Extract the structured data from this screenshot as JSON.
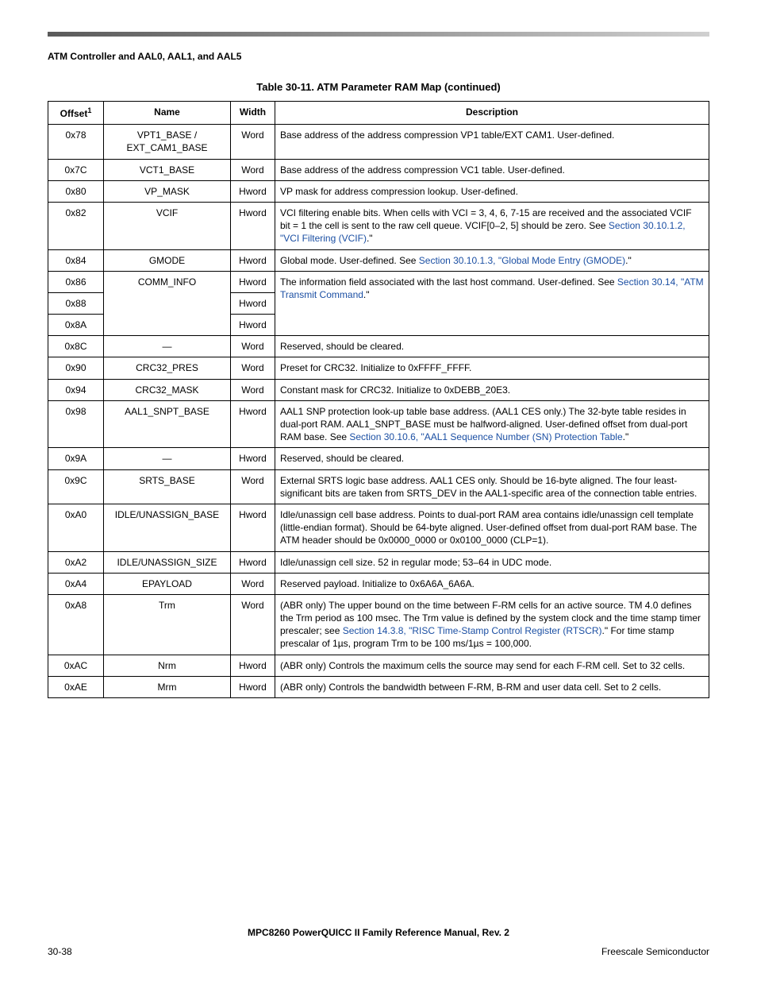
{
  "header": {
    "section": "ATM Controller and AAL0, AAL1, and AAL5"
  },
  "table": {
    "title": "Table 30-11. ATM Parameter RAM Map (continued)",
    "columns": {
      "offset": "Offset",
      "offset_sup": "1",
      "name": "Name",
      "width": "Width",
      "description": "Description"
    },
    "rows": {
      "r0": {
        "offset": "0x78",
        "name": "VPT1_BASE / EXT_CAM1_BASE",
        "width": "Word",
        "desc": "Base address of the address compression VP1 table/EXT CAM1. User-defined."
      },
      "r1": {
        "offset": "0x7C",
        "name": "VCT1_BASE",
        "width": "Word",
        "desc": "Base address of the address compression VC1 table. User-defined."
      },
      "r2": {
        "offset": "0x80",
        "name": "VP_MASK",
        "width": "Hword",
        "desc": "VP mask for address compression lookup. User-defined."
      },
      "r3": {
        "offset": "0x82",
        "name": "VCIF",
        "width": "Hword",
        "desc_a": "VCI filtering enable bits. When cells with VCI = 3, 4, 6, 7-15 are received and the associated VCIF bit = 1 the cell is sent to the raw cell queue. VCIF[0–2, 5] should be zero. See ",
        "link": "Section 30.10.1.2, \"VCI Filtering (VCIF)",
        "desc_b": ".\""
      },
      "r4": {
        "offset": "0x84",
        "name": "GMODE",
        "width": "Hword",
        "desc_a": "Global mode. User-defined. See ",
        "link": "Section 30.10.1.3, \"Global Mode Entry (GMODE)",
        "desc_b": ".\""
      },
      "r5": {
        "offset": "0x86",
        "name": "COMM_INFO",
        "width": "Hword",
        "desc_a": "The information field associated with the last host command. User-defined. See ",
        "link": "Section 30.14, \"ATM Transmit Command",
        "desc_b": ".\""
      },
      "r6": {
        "offset": "0x88",
        "width": "Hword"
      },
      "r7": {
        "offset": "0x8A",
        "width": "Hword"
      },
      "r8": {
        "offset": "0x8C",
        "name": "—",
        "width": "Word",
        "desc": "Reserved, should be cleared."
      },
      "r9": {
        "offset": "0x90",
        "name": "CRC32_PRES",
        "width": "Word",
        "desc": "Preset for CRC32. Initialize to 0xFFFF_FFFF."
      },
      "r10": {
        "offset": "0x94",
        "name": "CRC32_MASK",
        "width": "Word",
        "desc": "Constant mask for CRC32. Initialize to 0xDEBB_20E3."
      },
      "r11": {
        "offset": "0x98",
        "name": "AAL1_SNPT_BASE",
        "width": "Hword",
        "desc_a": "AAL1 SNP protection look-up table base address. (AAL1 CES only.) The 32-byte table resides in dual-port RAM. AAL1_SNPT_BASE must be halfword-aligned. User-defined offset from dual-port RAM base. See ",
        "link": "Section 30.10.6, \"AAL1 Sequence Number (SN) Protection Table",
        "desc_b": ".\""
      },
      "r12": {
        "offset": "0x9A",
        "name": "—",
        "width": "Hword",
        "desc": "Reserved, should be cleared."
      },
      "r13": {
        "offset": "0x9C",
        "name": "SRTS_BASE",
        "width": "Word",
        "desc": "External SRTS logic base address. AAL1 CES only. Should be 16-byte aligned. The four least-significant bits are taken from SRTS_DEV in the AAL1-specific area of the connection table entries."
      },
      "r14": {
        "offset": "0xA0",
        "name": "IDLE/UNASSIGN_BASE",
        "width": "Hword",
        "desc": "Idle/unassign cell base address. Points to dual-port RAM area contains idle/unassign cell template (little-endian format). Should be 64-byte aligned. User-defined offset from dual-port RAM base. The ATM header should be 0x0000_0000 or 0x0100_0000 (CLP=1)."
      },
      "r15": {
        "offset": "0xA2",
        "name": "IDLE/UNASSIGN_SIZE",
        "width": "Hword",
        "desc": "Idle/unassign cell size. 52 in regular mode; 53–64 in UDC mode."
      },
      "r16": {
        "offset": "0xA4",
        "name": "EPAYLOAD",
        "width": "Word",
        "desc": "Reserved payload. Initialize to 0x6A6A_6A6A."
      },
      "r17": {
        "offset": "0xA8",
        "name": "Trm",
        "width": "Word",
        "desc_a": "(ABR only) The upper bound on the time between F-RM cells for an active source. TM 4.0 defines the Trm period as 100 msec. The Trm value is defined by the system clock and the time stamp timer prescaler; see ",
        "link": "Section 14.3.8, \"RISC Time-Stamp Control Register (RTSCR)",
        "desc_b": ".\" For time stamp prescalar of 1µs, program Trm to be 100 ms/1µs = 100,000."
      },
      "r18": {
        "offset": "0xAC",
        "name": "Nrm",
        "width": "Hword",
        "desc": "(ABR only) Controls the maximum cells the source may send for each F-RM cell. Set to 32 cells."
      },
      "r19": {
        "offset": "0xAE",
        "name": "Mrm",
        "width": "Hword",
        "desc": "(ABR only) Controls the bandwidth between F-RM, B-RM and user data cell. Set to 2 cells."
      }
    }
  },
  "footer": {
    "manual": "MPC8260 PowerQUICC II Family Reference Manual, Rev. 2",
    "page": "30-38",
    "company": "Freescale Semiconductor"
  },
  "style": {
    "link_color": "#1b4fa3",
    "text_color": "#000000",
    "font_family": "Arial, Helvetica, sans-serif"
  }
}
